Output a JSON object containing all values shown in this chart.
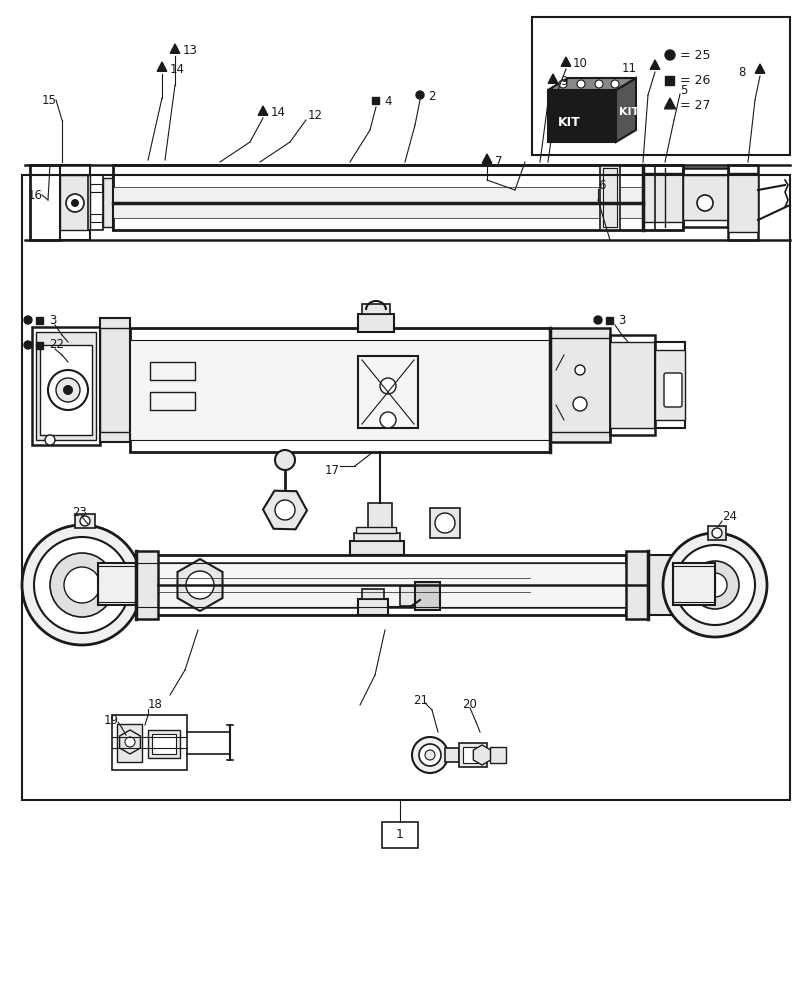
{
  "background_color": "#ffffff",
  "line_color": "#1a1a1a",
  "gray_fill": "#e8e8e8",
  "dark_fill": "#c0c0c0"
}
